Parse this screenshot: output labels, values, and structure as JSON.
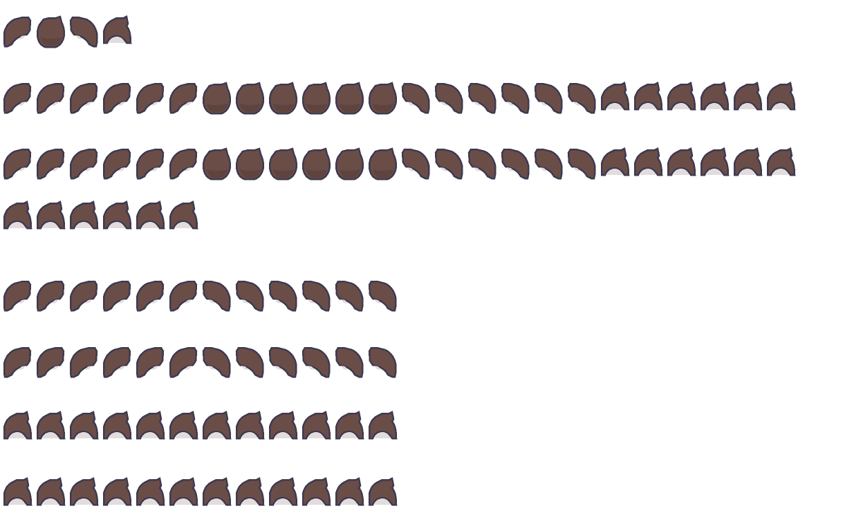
{
  "colors": {
    "hair": "#6b4d47",
    "hair_shade": "#5e433e",
    "outline": "#3d3a52",
    "highlight": "#e2dcdc",
    "background": "#ffffff"
  },
  "sprite_types": [
    "hair-side-left",
    "hair-front-round",
    "hair-side-right",
    "hair-back"
  ],
  "rows": [
    {
      "top": 22,
      "sprites": [
        "L",
        "F",
        "R",
        "B"
      ]
    },
    {
      "top": 118,
      "sprites": [
        "L",
        "L",
        "L",
        "L",
        "L",
        "L",
        "F",
        "F",
        "F",
        "F",
        "F",
        "F",
        "R",
        "R",
        "R",
        "R",
        "R",
        "R",
        "B",
        "B",
        "B",
        "B",
        "B",
        "B"
      ]
    },
    {
      "top": 213,
      "sprites": [
        "L",
        "L",
        "L",
        "L",
        "L",
        "L",
        "F",
        "F",
        "F",
        "F",
        "F",
        "F",
        "R",
        "R",
        "R",
        "R",
        "R",
        "R",
        "B",
        "B",
        "B",
        "B",
        "B",
        "B"
      ]
    },
    {
      "top": 290,
      "sprites": [
        "B",
        "B",
        "B",
        "B",
        "B",
        "B"
      ]
    },
    {
      "top": 404,
      "sprites": [
        "L",
        "L",
        "L",
        "L",
        "L",
        "L",
        "R",
        "R",
        "R",
        "R",
        "R",
        "R"
      ]
    },
    {
      "top": 500,
      "sprites": [
        "L",
        "L",
        "L",
        "L",
        "L",
        "L",
        "R",
        "R",
        "R",
        "R",
        "R",
        "R"
      ]
    },
    {
      "top": 594,
      "sprites": [
        "B",
        "B",
        "B",
        "B",
        "B",
        "B",
        "B",
        "B",
        "B",
        "B",
        "B",
        "B"
      ]
    },
    {
      "top": 690,
      "sprites": [
        "B",
        "B",
        "B",
        "B",
        "B",
        "B",
        "B",
        "B",
        "B",
        "B",
        "B",
        "B"
      ]
    }
  ]
}
